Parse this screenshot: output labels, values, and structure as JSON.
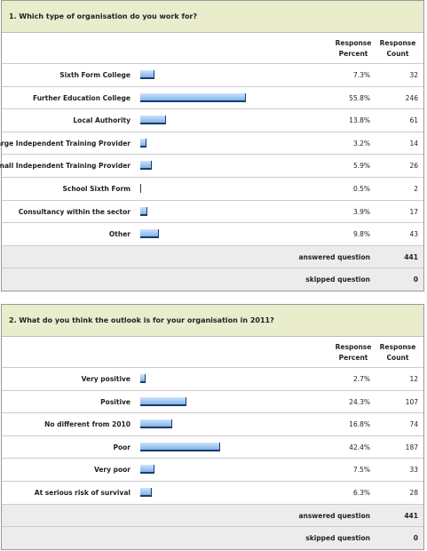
{
  "questions": [
    {
      "title": "1. Which type of organisation do you work for?",
      "columns": [
        "Response Percent",
        "Response Count"
      ],
      "rows": [
        {
          "label": "Sixth Form College",
          "percent": 7.3,
          "percent_label": "7.3%",
          "count": 32
        },
        {
          "label": "Further Education College",
          "percent": 55.8,
          "percent_label": "55.8%",
          "count": 246
        },
        {
          "label": "Local Authority",
          "percent": 13.8,
          "percent_label": "13.8%",
          "count": 61
        },
        {
          "label": "Large Independent Training Provider",
          "percent": 3.2,
          "percent_label": "3.2%",
          "count": 14
        },
        {
          "label": "Small Independent Training Provider",
          "percent": 5.9,
          "percent_label": "5.9%",
          "count": 26
        },
        {
          "label": "School Sixth Form",
          "percent": 0.5,
          "percent_label": "0.5%",
          "count": 2
        },
        {
          "label": "Consultancy within the sector",
          "percent": 3.9,
          "percent_label": "3.9%",
          "count": 17
        },
        {
          "label": "Other",
          "percent": 9.8,
          "percent_label": "9.8%",
          "count": 43
        }
      ],
      "summary": [
        {
          "label": "answered question",
          "count": 441
        },
        {
          "label": "skipped question",
          "count": 0
        }
      ]
    },
    {
      "title": "2. What do you think the outlook is for your organisation in 2011?",
      "columns": [
        "Response Percent",
        "Response Count"
      ],
      "rows": [
        {
          "label": "Very positive",
          "percent": 2.7,
          "percent_label": "2.7%",
          "count": 12
        },
        {
          "label": "Positive",
          "percent": 24.3,
          "percent_label": "24.3%",
          "count": 107
        },
        {
          "label": "No different from 2010",
          "percent": 16.8,
          "percent_label": "16.8%",
          "count": 74
        },
        {
          "label": "Poor",
          "percent": 42.4,
          "percent_label": "42.4%",
          "count": 187
        },
        {
          "label": "Very poor",
          "percent": 7.5,
          "percent_label": "7.5%",
          "count": 33
        },
        {
          "label": "At serious risk of survival",
          "percent": 6.3,
          "percent_label": "6.3%",
          "count": 28
        }
      ],
      "summary": [
        {
          "label": "answered question",
          "count": 441
        },
        {
          "label": "skipped question",
          "count": 0
        }
      ]
    }
  ]
}
